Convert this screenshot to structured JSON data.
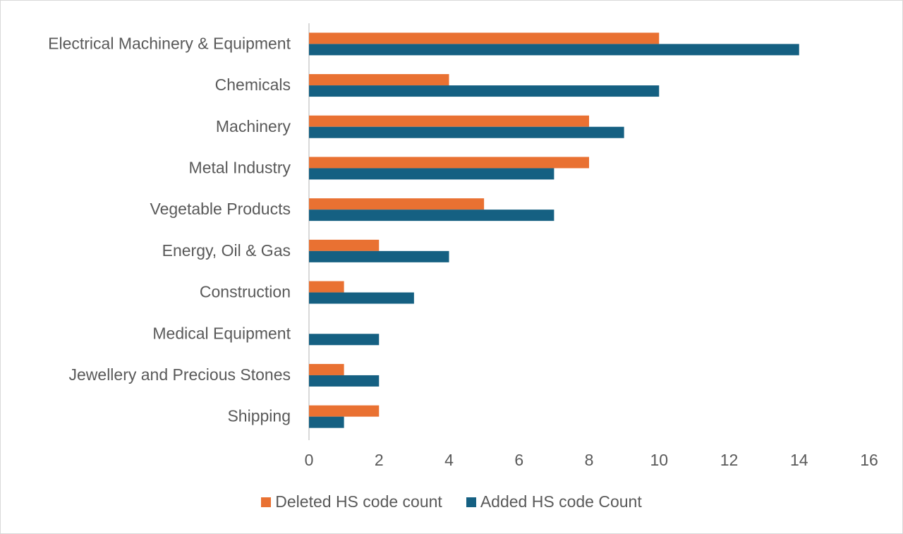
{
  "chart_data": {
    "type": "bar",
    "orientation": "horizontal",
    "title": "",
    "xlabel": "",
    "ylabel": "",
    "categories": [
      "Electrical Machinery & Equipment",
      "Chemicals",
      "Machinery",
      "Metal Industry",
      "Vegetable Products",
      "Energy, Oil & Gas",
      "Construction",
      "Medical Equipment",
      "Jewellery and Precious Stones",
      "Shipping"
    ],
    "series": [
      {
        "name": "Deleted HS code count",
        "color": "#E97132",
        "values": [
          10,
          4,
          8,
          8,
          5,
          2,
          1,
          0,
          1,
          2
        ]
      },
      {
        "name": "Added HS code Count",
        "color": "#156082",
        "values": [
          14,
          10,
          9,
          7,
          7,
          4,
          3,
          2,
          2,
          1
        ]
      }
    ],
    "xlim": [
      0,
      16
    ],
    "xticks": [
      "0",
      "2",
      "4",
      "6",
      "8",
      "10",
      "12",
      "14",
      "16"
    ],
    "grid": false,
    "legend_position": "bottom"
  }
}
